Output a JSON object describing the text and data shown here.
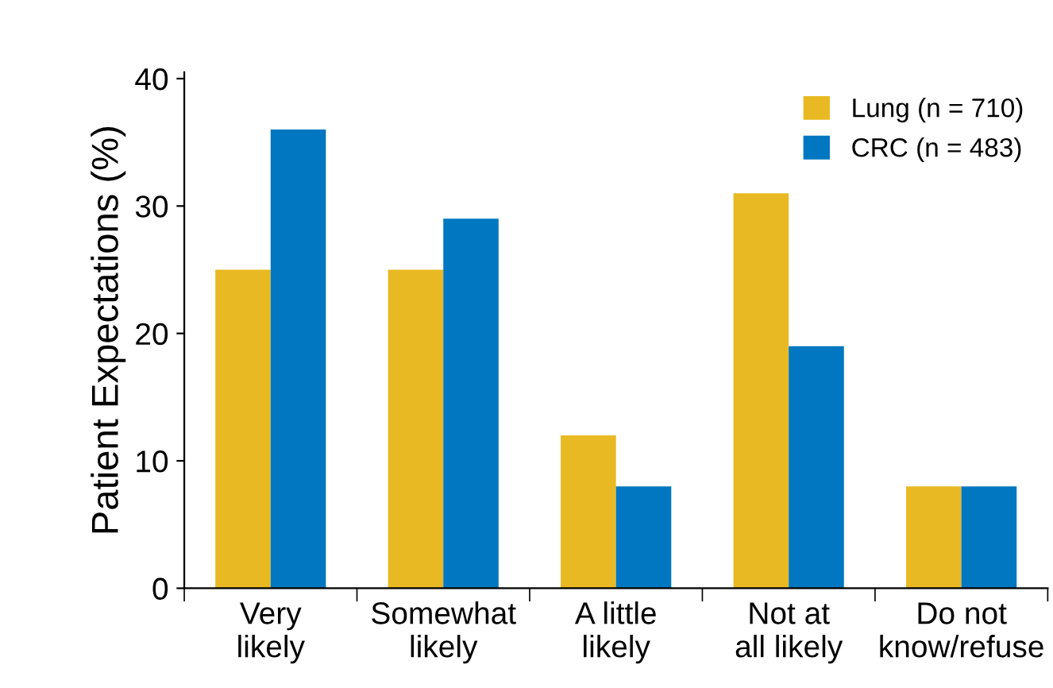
{
  "chart_data": {
    "type": "bar",
    "ylabel": "Patient Expectations (%)",
    "categories": [
      "Very\nlikely",
      "Somewhat\nlikely",
      "A little\nlikely",
      "Not at\nall likely",
      "Do not\nknow/refuse"
    ],
    "series": [
      {
        "name": "Lung (n = 710)",
        "color": "#e8b923",
        "values": [
          25,
          25,
          12,
          31,
          8
        ]
      },
      {
        "name": "CRC (n = 483)",
        "color": "#0077c0",
        "values": [
          36,
          29,
          8,
          19,
          8
        ]
      }
    ],
    "ylim": [
      0,
      40.5
    ],
    "yticks": [
      0,
      10,
      20,
      30,
      40
    ],
    "grid": false,
    "legend": "top right"
  }
}
